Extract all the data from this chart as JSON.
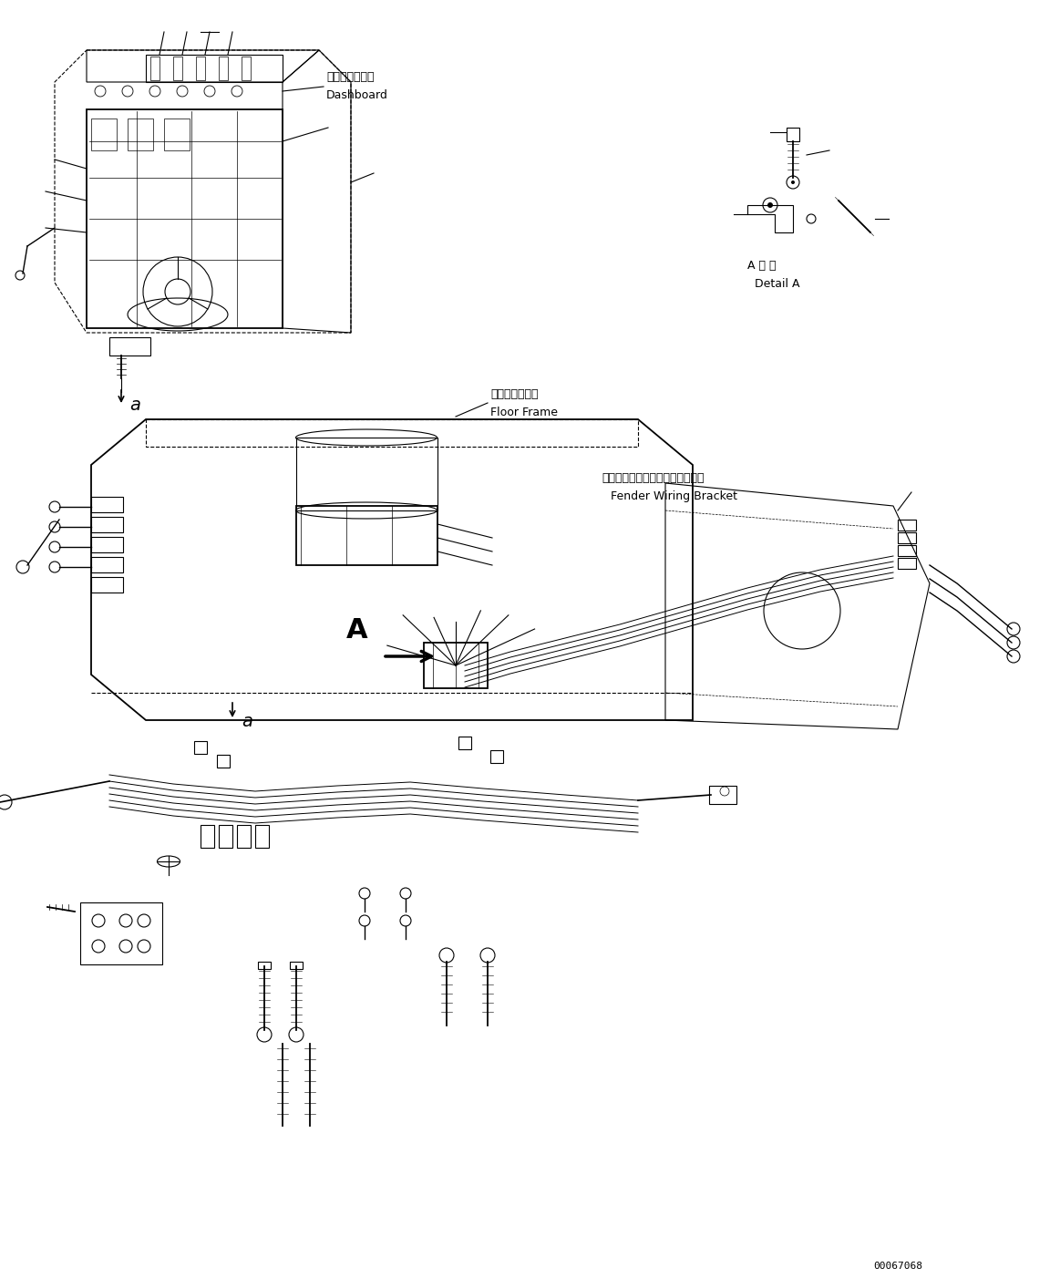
{
  "title": "",
  "background_color": "#ffffff",
  "part_number": "00067068",
  "labels": {
    "dashboard_jp": "ダッシュボード",
    "dashboard_en": "Dashboard",
    "detail_a_jp": "A 詳 細",
    "detail_a_en": "Detail A",
    "floor_frame_jp": "フロアフレーム",
    "floor_frame_en": "Floor Frame",
    "fender_bracket_jp": "フェンダワイヤリングブラケット",
    "fender_bracket_en": "Fender Wiring Bracket",
    "label_a": "A",
    "label_a_small": "a"
  },
  "fig_width": 11.63,
  "fig_height": 14.02
}
